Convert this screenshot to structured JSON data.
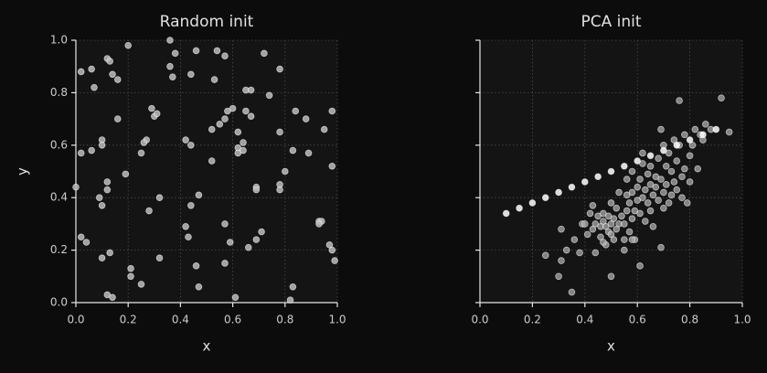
{
  "chart_data": [
    {
      "type": "scatter",
      "title": "Random init",
      "x_label": "x",
      "y_label": "y",
      "xlim": [
        0,
        1
      ],
      "ylim": [
        0,
        1
      ],
      "xticks": [
        {
          "value": 0,
          "label": "0.0"
        },
        0.2,
        0.4,
        0.6,
        0.8,
        {
          "value": 1,
          "label": "1.0"
        }
      ],
      "yticks": [
        {
          "value": 0,
          "label": "0.0"
        },
        0.2,
        0.4,
        0.6,
        0.8,
        {
          "value": 1,
          "label": "1.0"
        }
      ],
      "ytick_labels": true,
      "grid": true,
      "series": [
        {
          "color": "#bbbbbb",
          "x": [
            0.02,
            0.06,
            0.07,
            0.12,
            0.13,
            0.14,
            0.16,
            0.2,
            0.36,
            0.38,
            0.36,
            0.37,
            0.46,
            0.44,
            0.54,
            0.57,
            0.53,
            0.72,
            0.78,
            0.65,
            0.67,
            0.74,
            0.16,
            0.29,
            0.3,
            0.31,
            0.58,
            0.6,
            0.65,
            0.67,
            0.57,
            0.55,
            0.52,
            0.62,
            0.78,
            0.84,
            0.88,
            0.95,
            0.98,
            0.1,
            0.1,
            0.06,
            0.02,
            0.42,
            0.44,
            0.27,
            0.26,
            0.25,
            0.64,
            0.62,
            0.62,
            0.64,
            0.52,
            0.19,
            0.8,
            0.89,
            0.83,
            0.98,
            0.12,
            0.12,
            0.09,
            0.1,
            0.0,
            0.32,
            0.47,
            0.44,
            0.28,
            0.78,
            0.78,
            0.69,
            0.69,
            0.42,
            0.43,
            0.57,
            0.59,
            0.71,
            0.69,
            0.66,
            0.93,
            0.94,
            0.93,
            0.97,
            0.98,
            0.99,
            0.02,
            0.04,
            0.1,
            0.13,
            0.32,
            0.21,
            0.21,
            0.25,
            0.46,
            0.57,
            0.47,
            0.12,
            0.14,
            0.61,
            0.82,
            0.83
          ],
          "y": [
            0.88,
            0.89,
            0.82,
            0.93,
            0.92,
            0.87,
            0.85,
            0.98,
            1.0,
            0.95,
            0.9,
            0.86,
            0.96,
            0.87,
            0.96,
            0.94,
            0.85,
            0.95,
            0.89,
            0.81,
            0.81,
            0.79,
            0.7,
            0.74,
            0.71,
            0.72,
            0.73,
            0.74,
            0.73,
            0.71,
            0.7,
            0.68,
            0.66,
            0.65,
            0.65,
            0.73,
            0.7,
            0.66,
            0.73,
            0.62,
            0.6,
            0.58,
            0.57,
            0.62,
            0.6,
            0.62,
            0.61,
            0.57,
            0.61,
            0.59,
            0.57,
            0.58,
            0.54,
            0.49,
            0.5,
            0.57,
            0.58,
            0.52,
            0.46,
            0.43,
            0.4,
            0.37,
            0.44,
            0.4,
            0.41,
            0.37,
            0.35,
            0.45,
            0.43,
            0.44,
            0.43,
            0.29,
            0.25,
            0.3,
            0.23,
            0.27,
            0.24,
            0.21,
            0.31,
            0.31,
            0.3,
            0.22,
            0.2,
            0.16,
            0.25,
            0.23,
            0.17,
            0.19,
            0.17,
            0.13,
            0.1,
            0.07,
            0.14,
            0.15,
            0.06,
            0.03,
            0.02,
            0.02,
            0.01,
            0.06
          ]
        }
      ]
    },
    {
      "type": "scatter",
      "title": "PCA init",
      "x_label": "x",
      "xlim": [
        0,
        1
      ],
      "ylim": [
        0,
        1
      ],
      "xticks": [
        {
          "value": 0,
          "label": "0.0"
        },
        0.2,
        0.4,
        0.6,
        0.8,
        {
          "value": 1,
          "label": "1.0"
        }
      ],
      "yticks": [
        0,
        0.2,
        0.4,
        0.6,
        0.8,
        1
      ],
      "ytick_labels": false,
      "grid": true,
      "series": [
        {
          "color": "#aaaaaa",
          "x": [
            0.25,
            0.3,
            0.31,
            0.31,
            0.33,
            0.35,
            0.36,
            0.38,
            0.39,
            0.41,
            0.42,
            0.43,
            0.43,
            0.44,
            0.44,
            0.45,
            0.46,
            0.46,
            0.47,
            0.47,
            0.48,
            0.48,
            0.49,
            0.49,
            0.5,
            0.5,
            0.5,
            0.5,
            0.51,
            0.51,
            0.52,
            0.52,
            0.53,
            0.53,
            0.54,
            0.55,
            0.55,
            0.56,
            0.56,
            0.56,
            0.57,
            0.57,
            0.58,
            0.58,
            0.58,
            0.59,
            0.59,
            0.6,
            0.6,
            0.61,
            0.61,
            0.61,
            0.62,
            0.62,
            0.62,
            0.63,
            0.63,
            0.64,
            0.64,
            0.65,
            0.65,
            0.65,
            0.66,
            0.66,
            0.67,
            0.67,
            0.68,
            0.68,
            0.69,
            0.69,
            0.69,
            0.7,
            0.7,
            0.7,
            0.71,
            0.71,
            0.72,
            0.72,
            0.73,
            0.73,
            0.74,
            0.74,
            0.75,
            0.75,
            0.76,
            0.76,
            0.77,
            0.77,
            0.78,
            0.78,
            0.79,
            0.8,
            0.8,
            0.81,
            0.82,
            0.83,
            0.84,
            0.85,
            0.86,
            0.88,
            0.92,
            0.95,
            0.55,
            0.58,
            0.47,
            0.4
          ],
          "y": [
            0.18,
            0.1,
            0.16,
            0.28,
            0.2,
            0.04,
            0.24,
            0.19,
            0.3,
            0.26,
            0.34,
            0.28,
            0.37,
            0.19,
            0.3,
            0.33,
            0.25,
            0.29,
            0.31,
            0.34,
            0.22,
            0.29,
            0.27,
            0.33,
            0.1,
            0.26,
            0.3,
            0.38,
            0.24,
            0.32,
            0.28,
            0.36,
            0.3,
            0.42,
            0.33,
            0.24,
            0.3,
            0.35,
            0.41,
            0.47,
            0.27,
            0.38,
            0.32,
            0.42,
            0.5,
            0.24,
            0.35,
            0.39,
            0.44,
            0.14,
            0.34,
            0.47,
            0.4,
            0.53,
            0.57,
            0.31,
            0.43,
            0.38,
            0.49,
            0.35,
            0.45,
            0.52,
            0.29,
            0.41,
            0.48,
            0.44,
            0.39,
            0.55,
            0.21,
            0.47,
            0.66,
            0.36,
            0.42,
            0.6,
            0.45,
            0.52,
            0.38,
            0.57,
            0.41,
            0.5,
            0.62,
            0.46,
            0.43,
            0.54,
            0.77,
            0.6,
            0.48,
            0.4,
            0.64,
            0.51,
            0.38,
            0.56,
            0.46,
            0.6,
            0.66,
            0.51,
            0.64,
            0.62,
            0.68,
            0.66,
            0.78,
            0.65,
            0.2,
            0.24,
            0.23,
            0.3
          ]
        },
        {
          "color": "#ffffff",
          "x": [
            0.1,
            0.15,
            0.2,
            0.25,
            0.3,
            0.35,
            0.4,
            0.45,
            0.5,
            0.55,
            0.6,
            0.65,
            0.7,
            0.75,
            0.8,
            0.85,
            0.9
          ],
          "y": [
            0.34,
            0.36,
            0.38,
            0.4,
            0.42,
            0.44,
            0.46,
            0.48,
            0.5,
            0.52,
            0.54,
            0.56,
            0.58,
            0.6,
            0.62,
            0.64,
            0.66
          ]
        }
      ]
    }
  ]
}
